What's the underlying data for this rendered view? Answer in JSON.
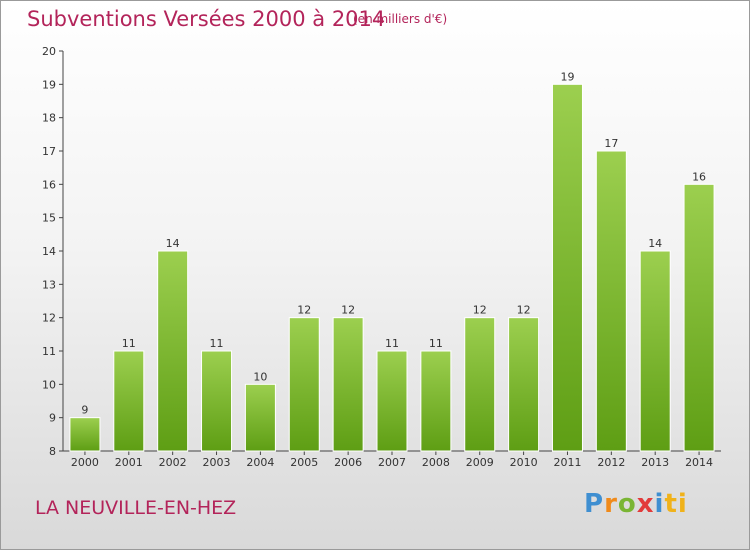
{
  "header": {
    "title": "Subventions Versées 2000 à 2014",
    "unit_note": "(en milliers d'€)"
  },
  "footer": {
    "commune": "LA NEUVILLE-EN-HEZ",
    "logo_letters": [
      "P",
      "r",
      "o",
      "x",
      "i",
      "ti"
    ]
  },
  "colors": {
    "bar_top": "#9ccf4f",
    "bar_bottom": "#5e9e14",
    "title": "#b3245a"
  },
  "chart_data": {
    "type": "bar",
    "title": "Subventions Versées 2000 à 2014",
    "subtitle": "(en milliers d'€)",
    "categories": [
      "2000",
      "2001",
      "2002",
      "2003",
      "2004",
      "2005",
      "2006",
      "2007",
      "2008",
      "2009",
      "2010",
      "2011",
      "2012",
      "2013",
      "2014"
    ],
    "values": [
      9,
      11,
      14,
      11,
      10,
      12,
      12,
      11,
      11,
      12,
      12,
      19,
      17,
      14,
      16
    ],
    "ylim": [
      8,
      20
    ],
    "yticks": [
      8,
      9,
      10,
      11,
      12,
      13,
      14,
      15,
      16,
      17,
      18,
      19,
      20
    ],
    "grid": false,
    "legend": "none"
  }
}
